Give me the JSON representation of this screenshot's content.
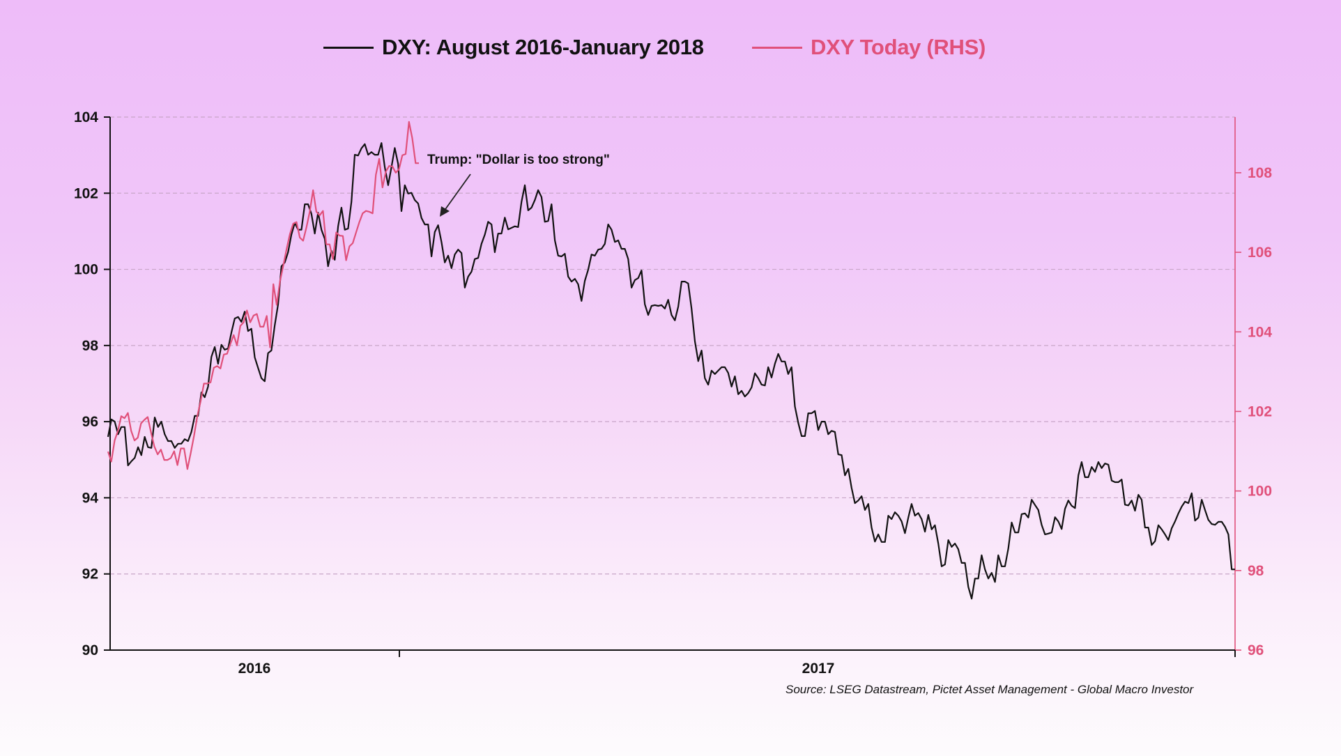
{
  "legend": {
    "items": [
      {
        "label": "DXY: August 2016-January 2018",
        "color": "#111111"
      },
      {
        "label": "DXY Today (RHS)",
        "color": "#e0507a"
      }
    ]
  },
  "annotation": {
    "text": "Trump: \"Dollar is too strong\""
  },
  "source": "Source: LSEG Datastream, Pictet Asset Management - Global Macro Investor",
  "colors": {
    "black_series": "#111111",
    "red_series": "#e0507a",
    "right_axis": "#e0507a",
    "grid": "#c8a6c8"
  },
  "chart_data": {
    "type": "line",
    "title": "",
    "xlabel": "",
    "ylabel": "",
    "x_tick_labels": [
      "2016",
      "2017"
    ],
    "ylim": [
      90,
      104
    ],
    "y_ticks": [
      90,
      92,
      94,
      96,
      98,
      100,
      102,
      104
    ],
    "y2lim": [
      96,
      109.4
    ],
    "y2_ticks": [
      96,
      98,
      100,
      102,
      104,
      106,
      108
    ],
    "grid": true,
    "legend_position": "top",
    "annotations": [
      {
        "text": "Trump: \"Dollar is too strong\"",
        "arrow_to_series": "DXY: August 2016-January 2018"
      }
    ],
    "series": [
      {
        "name": "DXY: August 2016-January 2018",
        "axis": "left",
        "color": "#111111",
        "values": [
          95.6,
          96.06,
          96.0,
          95.67,
          95.86,
          95.86,
          94.85,
          94.96,
          95.05,
          95.33,
          95.12,
          95.6,
          95.33,
          95.31,
          96.11,
          95.86,
          96.0,
          95.67,
          95.49,
          95.49,
          95.31,
          95.42,
          95.42,
          95.54,
          95.49,
          95.73,
          96.15,
          96.15,
          96.77,
          96.64,
          96.92,
          97.7,
          97.96,
          97.52,
          98.02,
          97.89,
          97.92,
          98.34,
          98.71,
          98.75,
          98.62,
          98.89,
          98.38,
          98.44,
          97.69,
          97.41,
          97.14,
          97.06,
          97.8,
          97.87,
          98.53,
          99.08,
          100.08,
          100.18,
          100.45,
          100.91,
          101.22,
          101.04,
          101.04,
          101.71,
          101.71,
          101.46,
          100.94,
          101.49,
          101.04,
          100.8,
          100.08,
          100.49,
          100.25,
          101.13,
          101.62,
          101.04,
          101.07,
          101.77,
          103.01,
          102.99,
          103.18,
          103.29,
          103.01,
          103.08,
          103.01,
          103.01,
          103.32,
          102.68,
          102.21,
          102.68,
          103.19,
          102.77,
          101.53,
          102.21,
          101.99,
          102.01,
          101.82,
          101.73,
          101.35,
          101.18,
          101.18,
          100.34,
          100.98,
          101.16,
          100.72,
          100.18,
          100.36,
          100.03,
          100.39,
          100.52,
          100.43,
          99.52,
          99.81,
          99.94,
          100.27,
          100.3,
          100.67,
          100.91,
          101.25,
          101.18,
          100.45,
          100.94,
          100.94,
          101.36,
          101.05,
          101.09,
          101.13,
          101.11,
          101.77,
          102.21,
          101.55,
          101.62,
          101.82,
          102.08,
          101.9,
          101.25,
          101.27,
          101.71,
          100.76,
          100.36,
          100.34,
          100.41,
          99.81,
          99.68,
          99.75,
          99.61,
          99.17,
          99.7,
          99.99,
          100.39,
          100.36,
          100.52,
          100.54,
          100.67,
          101.18,
          101.04,
          100.72,
          100.76,
          100.54,
          100.54,
          100.27,
          99.52,
          99.72,
          99.77,
          99.97,
          99.08,
          98.8,
          99.04,
          99.06,
          99.04,
          99.06,
          98.97,
          99.2,
          98.8,
          98.66,
          99.02,
          99.68,
          99.68,
          99.63,
          98.97,
          98.11,
          97.59,
          97.87,
          97.14,
          96.97,
          97.34,
          97.25,
          97.34,
          97.43,
          97.43,
          97.28,
          96.92,
          97.19,
          96.72,
          96.81,
          96.66,
          96.75,
          96.9,
          97.27,
          97.14,
          96.97,
          96.95,
          97.43,
          97.16,
          97.52,
          97.78,
          97.58,
          97.58,
          97.25,
          97.43,
          96.4,
          95.97,
          95.62,
          95.62,
          96.22,
          96.22,
          96.28,
          95.78,
          96.0,
          96.0,
          95.67,
          95.76,
          95.73,
          95.14,
          95.12,
          94.59,
          94.76,
          94.26,
          93.86,
          93.93,
          94.04,
          93.68,
          93.84,
          93.22,
          92.85,
          93.04,
          92.84,
          92.84,
          93.53,
          93.44,
          93.62,
          93.53,
          93.38,
          93.07,
          93.48,
          93.84,
          93.53,
          93.6,
          93.44,
          93.11,
          93.55,
          93.17,
          93.28,
          92.8,
          92.2,
          92.25,
          92.89,
          92.71,
          92.8,
          92.65,
          92.29,
          92.29,
          91.66,
          91.35,
          91.88,
          91.88,
          92.49,
          92.12,
          91.88,
          92.03,
          91.79,
          92.49,
          92.2,
          92.2,
          92.67,
          93.35,
          93.09,
          93.09,
          93.57,
          93.59,
          93.48,
          93.95,
          93.81,
          93.68,
          93.29,
          93.04,
          93.06,
          93.09,
          93.49,
          93.38,
          93.18,
          93.71,
          93.93,
          93.79,
          93.73,
          94.59,
          94.94,
          94.54,
          94.54,
          94.81,
          94.68,
          94.94,
          94.78,
          94.9,
          94.87,
          94.45,
          94.41,
          94.41,
          94.48,
          93.82,
          93.8,
          93.93,
          93.66,
          94.08,
          93.95,
          93.22,
          93.22,
          92.76,
          92.86,
          93.28,
          93.17,
          93.04,
          92.89,
          93.2,
          93.38,
          93.59,
          93.77,
          93.9,
          93.86,
          94.12,
          93.4,
          93.48,
          93.95,
          93.68,
          93.42,
          93.31,
          93.29,
          93.37,
          93.37,
          93.24,
          93.04,
          92.12,
          92.12
        ]
      },
      {
        "name": "DXY Today (RHS)",
        "axis": "right",
        "color": "#e0507a",
        "values": [
          100.99,
          100.74,
          101.27,
          101.51,
          101.88,
          101.83,
          101.96,
          101.51,
          101.27,
          101.34,
          101.7,
          101.79,
          101.86,
          101.47,
          101.12,
          100.92,
          101.04,
          100.78,
          100.78,
          100.83,
          101.0,
          100.65,
          101.07,
          101.07,
          100.55,
          100.95,
          101.39,
          101.88,
          102.26,
          102.7,
          102.7,
          102.73,
          103.1,
          103.14,
          103.08,
          103.43,
          103.45,
          103.7,
          103.92,
          103.66,
          104.15,
          104.24,
          104.54,
          104.24,
          104.41,
          104.45,
          104.13,
          104.13,
          104.4,
          103.61,
          105.2,
          104.68,
          105.27,
          105.67,
          106.08,
          106.46,
          106.72,
          106.76,
          106.37,
          106.29,
          106.63,
          107.02,
          107.56,
          107.02,
          106.93,
          107.04,
          106.2,
          106.2,
          105.83,
          106.5,
          106.42,
          106.41,
          105.8,
          106.15,
          106.23,
          106.5,
          106.76,
          106.98,
          107.04,
          107.02,
          106.98,
          107.95,
          108.35,
          107.63,
          108.03,
          108.17,
          108.16,
          108.0,
          108.09,
          108.44,
          108.47,
          109.28,
          108.87,
          108.24,
          108.24
        ]
      }
    ]
  }
}
